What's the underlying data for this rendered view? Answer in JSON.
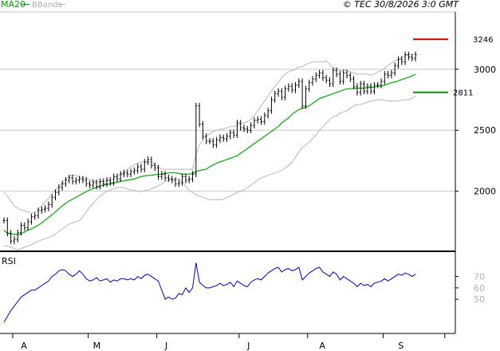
{
  "header": {
    "legend_ma": "MA20",
    "legend_bb": "BBands",
    "copyright": "© TEC 30/8/2026 3:0 GMT"
  },
  "colors": {
    "ma": "#00aa00",
    "bbands": "#b8b8b8",
    "bars": "#000000",
    "rsi": "#0000cc",
    "target_up": "#cc0000",
    "target_down": "#009900",
    "grid": "#c8c8c8",
    "axis": "#000000"
  },
  "chart_data": [
    {
      "type": "line",
      "subtype": "ohlc-bar",
      "title": "",
      "xlabel": "",
      "ylabel": "",
      "ylim": [
        1520,
        3470
      ],
      "yticks": [
        2000,
        2500,
        3000
      ],
      "ytick_labels": [
        "2000",
        "2500",
        "3000"
      ],
      "xticks": [
        0,
        22,
        42,
        66,
        86,
        108,
        126
      ],
      "xtick_labels": [
        "A",
        "M",
        "J",
        "J",
        "A",
        "S"
      ],
      "xtick_label_positions": [
        1,
        22,
        43,
        67,
        88,
        111
      ],
      "xlim": [
        -1,
        135
      ],
      "grid": true,
      "legend": [
        "MA20",
        "BBands"
      ],
      "levels": [
        {
          "label": "3246",
          "value": 3246,
          "color": "#cc0000"
        },
        {
          "label": "2811",
          "value": 2811,
          "color": "#009900"
        }
      ],
      "close": [
        1760,
        1655,
        1590,
        1605,
        1660,
        1720,
        1700,
        1750,
        1790,
        1800,
        1840,
        1850,
        1860,
        1890,
        1950,
        1990,
        2030,
        2060,
        2090,
        2110,
        2080,
        2090,
        2100,
        2090,
        2060,
        2050,
        2070,
        2040,
        2080,
        2060,
        2090,
        2070,
        2120,
        2100,
        2140,
        2150,
        2140,
        2160,
        2170,
        2200,
        2180,
        2240,
        2260,
        2210,
        2190,
        2120,
        2140,
        2110,
        2100,
        2090,
        2060,
        2070,
        2120,
        2090,
        2100,
        2140,
        2700,
        2550,
        2450,
        2410,
        2410,
        2380,
        2420,
        2440,
        2430,
        2450,
        2480,
        2460,
        2560,
        2520,
        2510,
        2500,
        2540,
        2580,
        2590,
        2570,
        2620,
        2660,
        2750,
        2800,
        2820,
        2770,
        2840,
        2860,
        2830,
        2870,
        2900,
        2700,
        2840,
        2890,
        2920,
        2950,
        2970,
        2930,
        2910,
        2880,
        2990,
        2960,
        2900,
        2970,
        2950,
        2920,
        2860,
        2810,
        2880,
        2820,
        2860,
        2820,
        2870,
        2870,
        2900,
        2960,
        2950,
        2970,
        3030,
        3080,
        3060,
        3120,
        3100,
        3090,
        3120
      ],
      "ma20": [
        1680,
        1655,
        1650,
        1645,
        1645,
        1650,
        1665,
        1680,
        1690,
        1705,
        1720,
        1740,
        1760,
        1785,
        1805,
        1830,
        1855,
        1880,
        1900,
        1920,
        1935,
        1950,
        1965,
        1980,
        1995,
        2010,
        2020,
        2030,
        2040,
        2050,
        2055,
        2060,
        2065,
        2075,
        2080,
        2085,
        2090,
        2095,
        2100,
        2110,
        2120,
        2125,
        2130,
        2130,
        2135,
        2140,
        2140,
        2145,
        2150,
        2150,
        2150,
        2145,
        2140,
        2140,
        2140,
        2145,
        2160,
        2170,
        2175,
        2180,
        2200,
        2215,
        2230,
        2240,
        2250,
        2260,
        2270,
        2280,
        2290,
        2310,
        2330,
        2350,
        2370,
        2390,
        2410,
        2430,
        2450,
        2470,
        2490,
        2510,
        2530,
        2560,
        2580,
        2600,
        2630,
        2650,
        2670,
        2680,
        2690,
        2700,
        2720,
        2740,
        2760,
        2770,
        2780,
        2790,
        2800,
        2810,
        2820,
        2830,
        2840,
        2840,
        2845,
        2845,
        2845,
        2845,
        2850,
        2850,
        2855,
        2860,
        2860,
        2870,
        2880,
        2890,
        2895,
        2905,
        2915,
        2925,
        2935,
        2945,
        2960
      ],
      "bb_upper": [
        1990,
        1960,
        1920,
        1880,
        1860,
        1845,
        1840,
        1830,
        1820,
        1830,
        1850,
        1880,
        1910,
        1940,
        1980,
        2010,
        2040,
        2070,
        2100,
        2120,
        2135,
        2130,
        2120,
        2110,
        2105,
        2095,
        2085,
        2080,
        2075,
        2080,
        2085,
        2090,
        2100,
        2120,
        2140,
        2160,
        2180,
        2200,
        2215,
        2230,
        2240,
        2240,
        2240,
        2240,
        2220,
        2200,
        2180,
        2180,
        2180,
        2180,
        2180,
        2180,
        2180,
        2180,
        2180,
        2180,
        2300,
        2380,
        2420,
        2450,
        2470,
        2490,
        2500,
        2510,
        2510,
        2520,
        2530,
        2530,
        2540,
        2550,
        2560,
        2570,
        2590,
        2620,
        2660,
        2700,
        2740,
        2780,
        2820,
        2860,
        2890,
        2930,
        2960,
        2980,
        2990,
        3000,
        3020,
        3020,
        3040,
        3050,
        3060,
        3060,
        3060,
        3060,
        3070,
        3040,
        3010,
        3000,
        2990,
        2990,
        2990,
        2980,
        2970,
        2960,
        2960,
        2960,
        2960,
        2950,
        2960,
        2980,
        2990,
        3010,
        3030,
        3050,
        3070,
        3080,
        3100,
        3110,
        3120,
        3120,
        3130
      ],
      "bb_lower": [
        1550,
        1550,
        1540,
        1530,
        1520,
        1530,
        1540,
        1550,
        1560,
        1580,
        1590,
        1600,
        1610,
        1620,
        1630,
        1650,
        1670,
        1690,
        1710,
        1730,
        1740,
        1750,
        1760,
        1790,
        1830,
        1870,
        1900,
        1930,
        1960,
        1980,
        2000,
        2010,
        2020,
        2030,
        2030,
        2030,
        2020,
        2010,
        2005,
        2000,
        1995,
        2005,
        2010,
        2020,
        2030,
        2045,
        2060,
        2080,
        2090,
        2100,
        2100,
        2100,
        2080,
        2040,
        2010,
        1990,
        1970,
        1960,
        1950,
        1940,
        1930,
        1930,
        1930,
        1930,
        1935,
        1950,
        1960,
        1975,
        1990,
        2000,
        2010,
        2030,
        2050,
        2070,
        2090,
        2110,
        2120,
        2130,
        2140,
        2150,
        2160,
        2170,
        2190,
        2210,
        2240,
        2280,
        2320,
        2360,
        2380,
        2400,
        2430,
        2460,
        2500,
        2530,
        2560,
        2590,
        2610,
        2620,
        2640,
        2650,
        2660,
        2680,
        2700,
        2710,
        2710,
        2720,
        2730,
        2740,
        2745,
        2750,
        2750,
        2745,
        2740,
        2740,
        2740,
        2740,
        2750,
        2750,
        2750,
        2760,
        2780
      ]
    },
    {
      "type": "line",
      "title": "RSI",
      "xlabel": "",
      "ylabel": "",
      "ylim": [
        20,
        90
      ],
      "yticks": [
        50,
        60,
        70
      ],
      "ytick_labels": [
        "50",
        "60",
        "70"
      ],
      "grid": false,
      "legend": [],
      "rsi": [
        30,
        35,
        40,
        44,
        48,
        52,
        54,
        56,
        58,
        58,
        60,
        62,
        64,
        66,
        70,
        72,
        75,
        76,
        75,
        72,
        70,
        72,
        75,
        72,
        68,
        66,
        67,
        69,
        66,
        67,
        68,
        65,
        67,
        66,
        68,
        68,
        67,
        68,
        67,
        70,
        68,
        71,
        72,
        70,
        68,
        66,
        58,
        50,
        52,
        50,
        51,
        55,
        54,
        60,
        56,
        60,
        82,
        65,
        62,
        60,
        60,
        61,
        62,
        64,
        62,
        63,
        65,
        61,
        66,
        64,
        62,
        61,
        65,
        67,
        68,
        67,
        70,
        73,
        75,
        77,
        78,
        74,
        76,
        77,
        75,
        76,
        78,
        67,
        70,
        73,
        75,
        77,
        78,
        74,
        72,
        70,
        74,
        72,
        67,
        70,
        68,
        66,
        64,
        61,
        64,
        62,
        63,
        61,
        64,
        65,
        66,
        68,
        66,
        68,
        70,
        72,
        71,
        73,
        72,
        70,
        72
      ]
    }
  ]
}
